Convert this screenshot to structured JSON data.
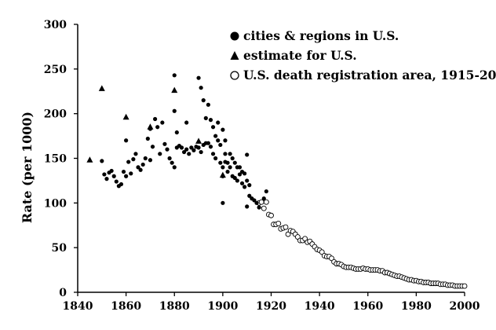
{
  "chart_data": {
    "type": "scatter",
    "title": "",
    "xlabel": "",
    "ylabel": "Rate (per 1000)",
    "xlim": [
      1840,
      2000
    ],
    "ylim": [
      0,
      300
    ],
    "xticks": [
      1840,
      1860,
      1880,
      1900,
      1920,
      1940,
      1960,
      1980,
      2000
    ],
    "yticks": [
      0,
      50,
      100,
      150,
      200,
      250,
      300
    ],
    "grid": false,
    "legend_position": "top-right",
    "series": [
      {
        "name": "cities & regions in U.S.",
        "marker": "filled-circle",
        "color": "#000000",
        "points": [
          [
            1850,
            147
          ],
          [
            1851,
            132
          ],
          [
            1852,
            127
          ],
          [
            1853,
            134
          ],
          [
            1854,
            136
          ],
          [
            1855,
            130
          ],
          [
            1856,
            124
          ],
          [
            1857,
            119
          ],
          [
            1858,
            121
          ],
          [
            1859,
            135
          ],
          [
            1860,
            170
          ],
          [
            1860,
            130
          ],
          [
            1861,
            146
          ],
          [
            1862,
            133
          ],
          [
            1863,
            149
          ],
          [
            1864,
            155
          ],
          [
            1865,
            140
          ],
          [
            1866,
            137
          ],
          [
            1867,
            143
          ],
          [
            1868,
            150
          ],
          [
            1869,
            172
          ],
          [
            1870,
            148
          ],
          [
            1870,
            183
          ],
          [
            1871,
            163
          ],
          [
            1872,
            194
          ],
          [
            1873,
            185
          ],
          [
            1874,
            155
          ],
          [
            1875,
            190
          ],
          [
            1876,
            166
          ],
          [
            1877,
            160
          ],
          [
            1878,
            150
          ],
          [
            1879,
            145
          ],
          [
            1880,
            140
          ],
          [
            1880,
            243
          ],
          [
            1880,
            203
          ],
          [
            1881,
            179
          ],
          [
            1881,
            162
          ],
          [
            1882,
            164
          ],
          [
            1883,
            162
          ],
          [
            1884,
            157
          ],
          [
            1885,
            190
          ],
          [
            1885,
            160
          ],
          [
            1886,
            155
          ],
          [
            1887,
            162
          ],
          [
            1888,
            159
          ],
          [
            1889,
            163
          ],
          [
            1890,
            240
          ],
          [
            1890,
            162
          ],
          [
            1891,
            229
          ],
          [
            1891,
            157
          ],
          [
            1892,
            215
          ],
          [
            1892,
            165
          ],
          [
            1893,
            195
          ],
          [
            1893,
            167
          ],
          [
            1894,
            210
          ],
          [
            1894,
            167
          ],
          [
            1895,
            193
          ],
          [
            1895,
            163
          ],
          [
            1896,
            185
          ],
          [
            1896,
            155
          ],
          [
            1897,
            175
          ],
          [
            1897,
            150
          ],
          [
            1898,
            190
          ],
          [
            1898,
            170
          ],
          [
            1899,
            165
          ],
          [
            1899,
            145
          ],
          [
            1900,
            182
          ],
          [
            1900,
            140
          ],
          [
            1900,
            100
          ],
          [
            1900,
            130
          ],
          [
            1901,
            170
          ],
          [
            1901,
            155
          ],
          [
            1901,
            146
          ],
          [
            1902,
            145
          ],
          [
            1902,
            135
          ],
          [
            1903,
            155
          ],
          [
            1903,
            140
          ],
          [
            1904,
            150
          ],
          [
            1904,
            130
          ],
          [
            1905,
            145
          ],
          [
            1905,
            128
          ],
          [
            1906,
            140
          ],
          [
            1906,
            125
          ],
          [
            1907,
            140
          ],
          [
            1907,
            132
          ],
          [
            1908,
            135
          ],
          [
            1908,
            122
          ],
          [
            1909,
            133
          ],
          [
            1909,
            118
          ],
          [
            1910,
            154
          ],
          [
            1910,
            125
          ],
          [
            1910,
            96
          ],
          [
            1911,
            120
          ],
          [
            1911,
            108
          ],
          [
            1912,
            105
          ],
          [
            1913,
            103
          ],
          [
            1914,
            100
          ],
          [
            1915,
            95
          ],
          [
            1917,
            105
          ],
          [
            1918,
            113
          ]
        ]
      },
      {
        "name": "estimate for U.S.",
        "marker": "filled-triangle",
        "color": "#000000",
        "points": [
          [
            1845,
            148
          ],
          [
            1850,
            228
          ],
          [
            1860,
            196
          ],
          [
            1870,
            185
          ],
          [
            1880,
            226
          ],
          [
            1890,
            169
          ],
          [
            1900,
            131
          ]
        ]
      },
      {
        "name": "U.S. death registration area, 1915-2000",
        "marker": "open-circle",
        "color": "#000000",
        "points": [
          [
            1915,
            100
          ],
          [
            1916,
            101
          ],
          [
            1917,
            94
          ],
          [
            1918,
            101
          ],
          [
            1919,
            87
          ],
          [
            1920,
            86
          ],
          [
            1921,
            76
          ],
          [
            1922,
            76
          ],
          [
            1923,
            77
          ],
          [
            1924,
            71
          ],
          [
            1925,
            72
          ],
          [
            1926,
            73
          ],
          [
            1927,
            65
          ],
          [
            1928,
            69
          ],
          [
            1929,
            68
          ],
          [
            1930,
            65
          ],
          [
            1931,
            62
          ],
          [
            1932,
            58
          ],
          [
            1933,
            58
          ],
          [
            1934,
            60
          ],
          [
            1935,
            56
          ],
          [
            1936,
            57
          ],
          [
            1937,
            54
          ],
          [
            1938,
            51
          ],
          [
            1939,
            48
          ],
          [
            1940,
            47
          ],
          [
            1941,
            45
          ],
          [
            1942,
            41
          ],
          [
            1943,
            40
          ],
          [
            1944,
            40
          ],
          [
            1945,
            38
          ],
          [
            1946,
            34
          ],
          [
            1947,
            32
          ],
          [
            1948,
            32
          ],
          [
            1949,
            31
          ],
          [
            1950,
            29
          ],
          [
            1951,
            28
          ],
          [
            1952,
            28
          ],
          [
            1953,
            28
          ],
          [
            1954,
            27
          ],
          [
            1955,
            26
          ],
          [
            1956,
            26
          ],
          [
            1957,
            26
          ],
          [
            1958,
            27
          ],
          [
            1959,
            26
          ],
          [
            1960,
            26
          ],
          [
            1961,
            25
          ],
          [
            1962,
            25
          ],
          [
            1963,
            25
          ],
          [
            1964,
            25
          ],
          [
            1965,
            24
          ],
          [
            1966,
            24
          ],
          [
            1967,
            22
          ],
          [
            1968,
            22
          ],
          [
            1969,
            21
          ],
          [
            1970,
            20
          ],
          [
            1971,
            19
          ],
          [
            1972,
            18
          ],
          [
            1973,
            18
          ],
          [
            1974,
            17
          ],
          [
            1975,
            16
          ],
          [
            1976,
            15
          ],
          [
            1977,
            14
          ],
          [
            1978,
            14
          ],
          [
            1979,
            13
          ],
          [
            1980,
            13
          ],
          [
            1981,
            12
          ],
          [
            1982,
            12
          ],
          [
            1983,
            11
          ],
          [
            1984,
            11
          ],
          [
            1985,
            11
          ],
          [
            1986,
            10
          ],
          [
            1987,
            10
          ],
          [
            1988,
            10
          ],
          [
            1989,
            10
          ],
          [
            1990,
            9
          ],
          [
            1991,
            9
          ],
          [
            1992,
            9
          ],
          [
            1993,
            8
          ],
          [
            1994,
            8
          ],
          [
            1995,
            8
          ],
          [
            1996,
            7
          ],
          [
            1997,
            7
          ],
          [
            1998,
            7
          ],
          [
            1999,
            7
          ],
          [
            2000,
            7
          ]
        ]
      }
    ]
  }
}
